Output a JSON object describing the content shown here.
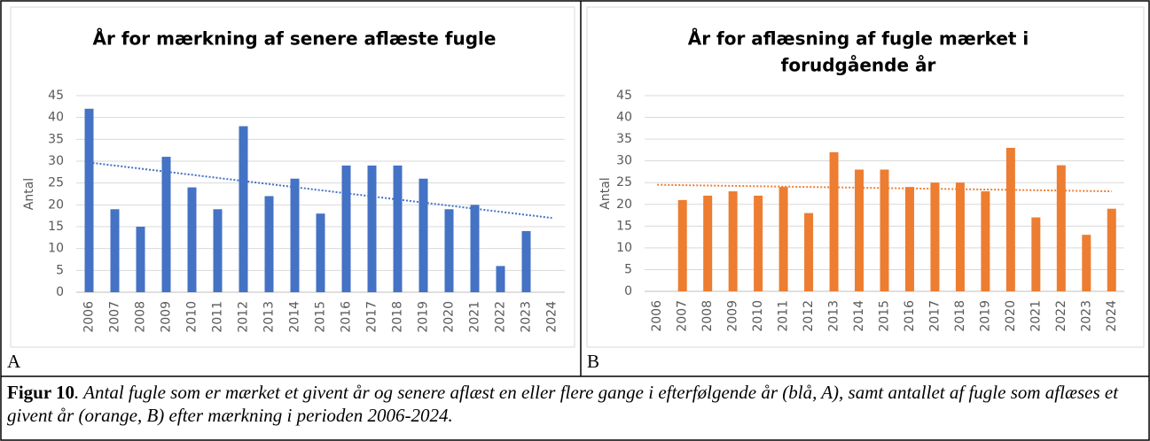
{
  "chart_data": [
    {
      "type": "bar",
      "title": [
        "År for mærkning af senere aflæste fugle"
      ],
      "y_label": "Antal",
      "categories": [
        "2006",
        "2007",
        "2008",
        "2009",
        "2010",
        "2011",
        "2012",
        "2013",
        "2014",
        "2015",
        "2016",
        "2017",
        "2018",
        "2019",
        "2020",
        "2021",
        "2022",
        "2023",
        "2024"
      ],
      "values": [
        42,
        19,
        15,
        31,
        24,
        19,
        38,
        22,
        26,
        18,
        29,
        29,
        29,
        26,
        19,
        20,
        6,
        14,
        null
      ],
      "color": "#4472c4",
      "ylim": [
        0,
        45
      ],
      "yticks": [
        0,
        5,
        10,
        15,
        20,
        25,
        30,
        35,
        40,
        45
      ],
      "grid": true,
      "trendline": [
        29.7,
        17.0
      ]
    },
    {
      "type": "bar",
      "title": [
        "År for aflæsning af fugle mærket i",
        "forudgående år"
      ],
      "y_label": "Antal",
      "categories": [
        "2006",
        "2007",
        "2008",
        "2009",
        "2010",
        "2011",
        "2012",
        "2013",
        "2014",
        "2015",
        "2016",
        "2017",
        "2018",
        "2019",
        "2020",
        "2021",
        "2022",
        "2023",
        "2024"
      ],
      "values": [
        null,
        21,
        22,
        23,
        22,
        24,
        18,
        32,
        28,
        28,
        24,
        25,
        25,
        23,
        33,
        17,
        29,
        13,
        19
      ],
      "color": "#ed7d31",
      "ylim": [
        0,
        45
      ],
      "yticks": [
        0,
        5,
        10,
        15,
        20,
        25,
        30,
        35,
        40,
        45
      ],
      "grid": true,
      "trendline": [
        24.5,
        23.0
      ]
    }
  ],
  "panel_labels": [
    "A",
    "B"
  ],
  "caption": {
    "label": "Figur 10",
    "text": ". Antal fugle som er mærket et givent år og senere aflæst en eller flere gange i efterfølgende år (blå, A), samt antallet af fugle som aflæses et givent år (orange, B) efter mærkning i perioden 2006-2024."
  }
}
